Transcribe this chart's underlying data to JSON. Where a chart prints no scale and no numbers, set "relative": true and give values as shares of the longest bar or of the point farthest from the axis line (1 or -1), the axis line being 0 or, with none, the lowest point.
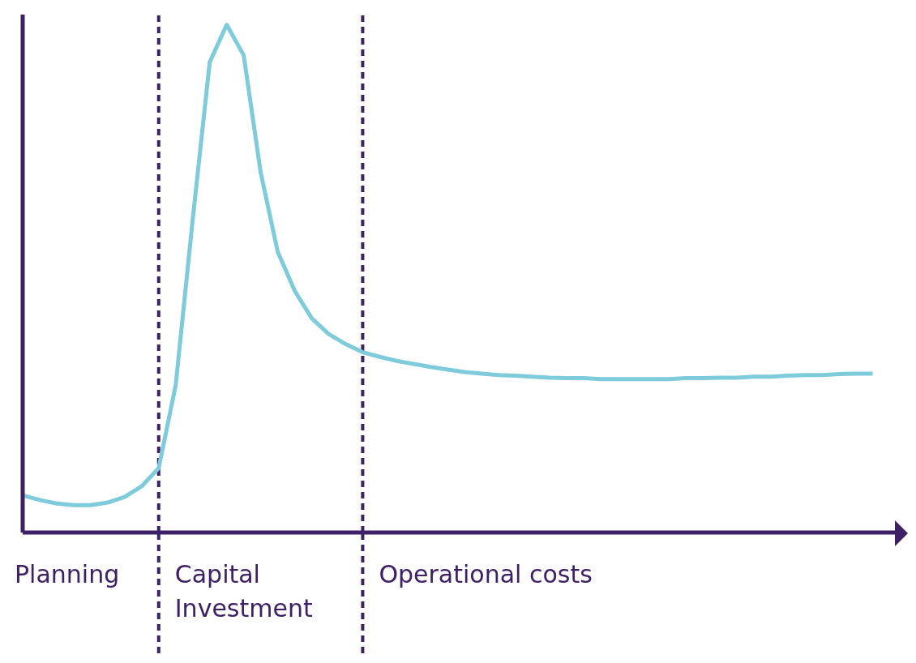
{
  "chart_data": {
    "type": "line",
    "relative": true,
    "categories": [
      null,
      null,
      null,
      null,
      null,
      null,
      null,
      null,
      null,
      null,
      null,
      null,
      null,
      null,
      null,
      null,
      null,
      null,
      null,
      null,
      null,
      null,
      null,
      null,
      null,
      null,
      null,
      null,
      null,
      null,
      null,
      null,
      null,
      null,
      null,
      null,
      null,
      null,
      null,
      null,
      null,
      null,
      null,
      null,
      null,
      null,
      null,
      null,
      null,
      null,
      null
    ],
    "series": [
      {
        "color": "#7ecbdc",
        "values": [
          0.073,
          0.064,
          0.057,
          0.054,
          0.054,
          0.059,
          0.07,
          0.091,
          0.127,
          0.29,
          0.616,
          0.926,
          1,
          0.94,
          0.709,
          0.553,
          0.476,
          0.422,
          0.391,
          0.371,
          0.355,
          0.346,
          0.338,
          0.332,
          0.326,
          0.321,
          0.316,
          0.313,
          0.31,
          0.309,
          0.307,
          0.305,
          0.304,
          0.304,
          0.302,
          0.302,
          0.302,
          0.302,
          0.302,
          0.304,
          0.304,
          0.305,
          0.305,
          0.307,
          0.307,
          0.309,
          0.31,
          0.31,
          0.312,
          0.313,
          0.313
        ]
      }
    ],
    "annotations": [
      "Planning",
      "Capital Investment",
      "Operational costs"
    ]
  }
}
